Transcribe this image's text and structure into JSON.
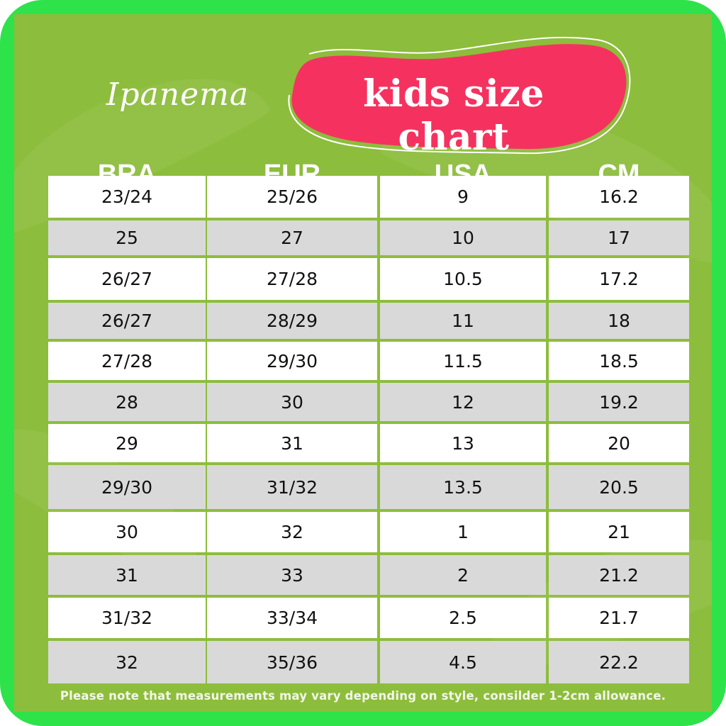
{
  "brand": "Ipanema",
  "title": "kids size chart",
  "colors": {
    "outer_frame": "#2ee24a",
    "background": "#8dbd3c",
    "title_blob": "#f5325f",
    "row_white": "#ffffff",
    "row_grey": "#d9d9d9"
  },
  "columns": [
    "BRA",
    "EUR",
    "USA",
    "CM"
  ],
  "rows": [
    [
      "23/24",
      "25/26",
      "9",
      "16.2"
    ],
    [
      "25",
      "27",
      "10",
      "17"
    ],
    [
      "26/27",
      "27/28",
      "10.5",
      "17.2"
    ],
    [
      "26/27",
      "28/29",
      "11",
      "18"
    ],
    [
      "27/28",
      "29/30",
      "11.5",
      "18.5"
    ],
    [
      "28",
      "30",
      "12",
      "19.2"
    ],
    [
      "29",
      "31",
      "13",
      "20"
    ],
    [
      "29/30",
      "31/32",
      "13.5",
      "20.5"
    ],
    [
      "30",
      "32",
      "1",
      "21"
    ],
    [
      "31",
      "33",
      "2",
      "21.2"
    ],
    [
      "31/32",
      "33/34",
      "2.5",
      "21.7"
    ],
    [
      "32",
      "35/36",
      "4.5",
      "22.2"
    ]
  ],
  "note": "Please note that measurements may vary depending on style, consilder 1-2cm allowance."
}
